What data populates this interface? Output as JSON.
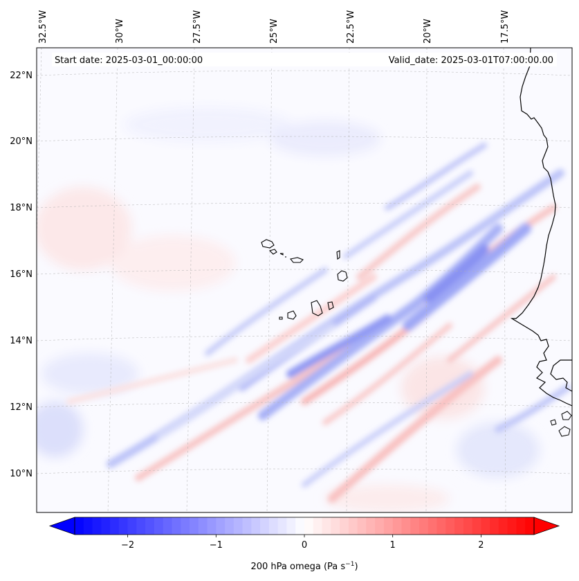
{
  "map": {
    "start_date_label": "Start date: 2025-03-01_00:00:00",
    "valid_date_label": "Valid_date: 2025-03-01T07:00:00.00",
    "longitude_labels": [
      "32.5°W",
      "30°W",
      "27.5°W",
      "25°W",
      "22.5°W",
      "20°W",
      "17.5°W"
    ],
    "latitude_labels": [
      "22°N",
      "20°N",
      "18°N",
      "16°N",
      "14°N",
      "12°N",
      "10°N"
    ],
    "variable": "200 hPa omega",
    "units": "Pa s⁻¹"
  },
  "colorbar": {
    "label_text": "200 hPa omega (Pa s",
    "label_superscript": "−1",
    "label_close": ")",
    "ticks": [
      "−2",
      "−1",
      "0",
      "1",
      "2"
    ],
    "tick_values": [
      -2,
      -1,
      0,
      1,
      2
    ],
    "range": [
      -2.6,
      2.6
    ],
    "colormap": "bwr",
    "low_color": "#0000ff",
    "mid_color": "#ffffff",
    "high_color": "#ff0000"
  },
  "colors": {
    "coastline": "#000000",
    "gridline": "#b0b0b0",
    "ocean_base": "#fafaff"
  }
}
